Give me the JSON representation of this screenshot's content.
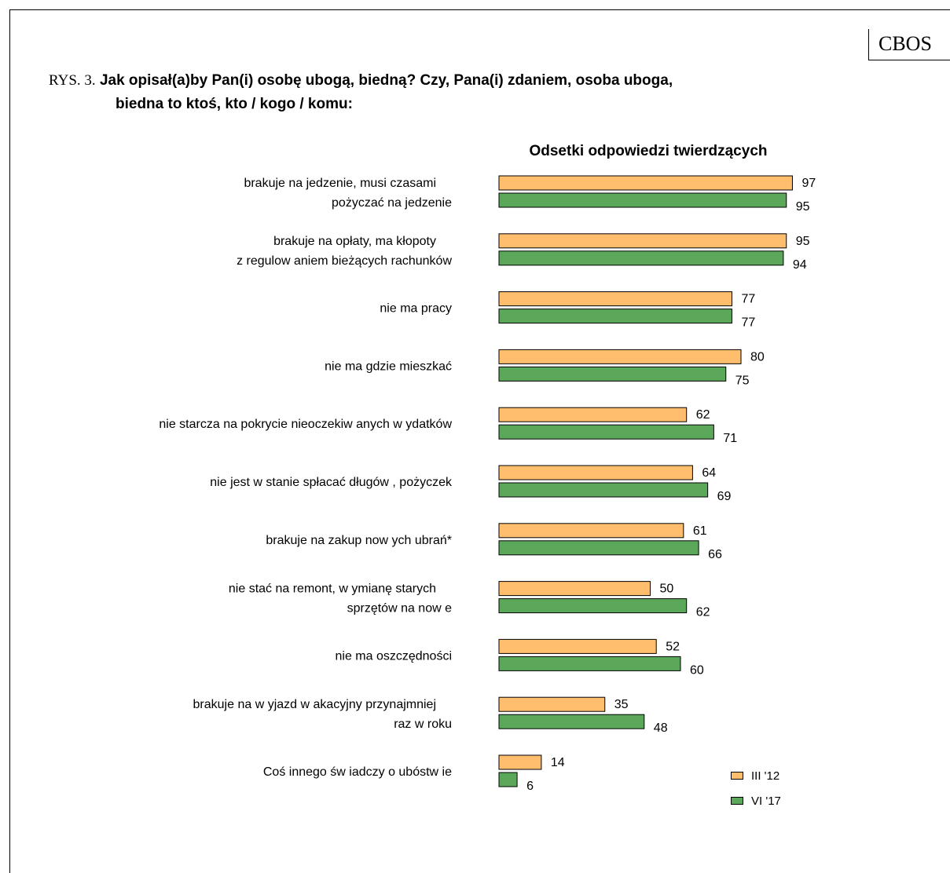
{
  "badge": "CBOS",
  "title": {
    "prefix": "RYS. 3.",
    "line1": "Jak opisał(a)by Pan(i) osobę ubogą, biedną? Czy, Pana(i) zdaniem, osoba uboga,",
    "line2": "biedna to ktoś, kto / kogo / komu:"
  },
  "chart_data": {
    "type": "bar",
    "orientation": "horizontal",
    "title": "Odsetki odpowiedzi twierdzących",
    "categories": [
      [
        "brakuje na jedzenie, musi czasami",
        "pożyczać na jedzenie"
      ],
      [
        "brakuje na opłaty, ma kłopoty",
        "z regulow aniem bieżących rachunków"
      ],
      [
        "nie ma pracy"
      ],
      [
        "nie ma gdzie mieszkać"
      ],
      [
        "nie starcza na pokrycie nieoczekiw anych w ydatków"
      ],
      [
        "nie jest w  stanie spłacać długów , pożyczek"
      ],
      [
        "brakuje na zakup now ych ubrań*"
      ],
      [
        "nie stać na remont, w ymianę starych",
        "sprzętów  na now e"
      ],
      [
        "nie ma oszczędności"
      ],
      [
        "brakuje na w yjazd w akacyjny przynajmniej",
        "raz w  roku"
      ],
      [
        "Coś innego św iadczy o ubóstw ie"
      ]
    ],
    "series": [
      {
        "name": "III '12",
        "color": "#FFBE6E",
        "values": [
          97,
          95,
          77,
          80,
          62,
          64,
          61,
          50,
          52,
          35,
          14
        ]
      },
      {
        "name": "VI '17",
        "color": "#5BA85A",
        "values": [
          95,
          94,
          77,
          75,
          71,
          69,
          66,
          62,
          60,
          48,
          6
        ]
      }
    ],
    "xlim": [
      0,
      100
    ],
    "legend_position": "bottom-right"
  }
}
